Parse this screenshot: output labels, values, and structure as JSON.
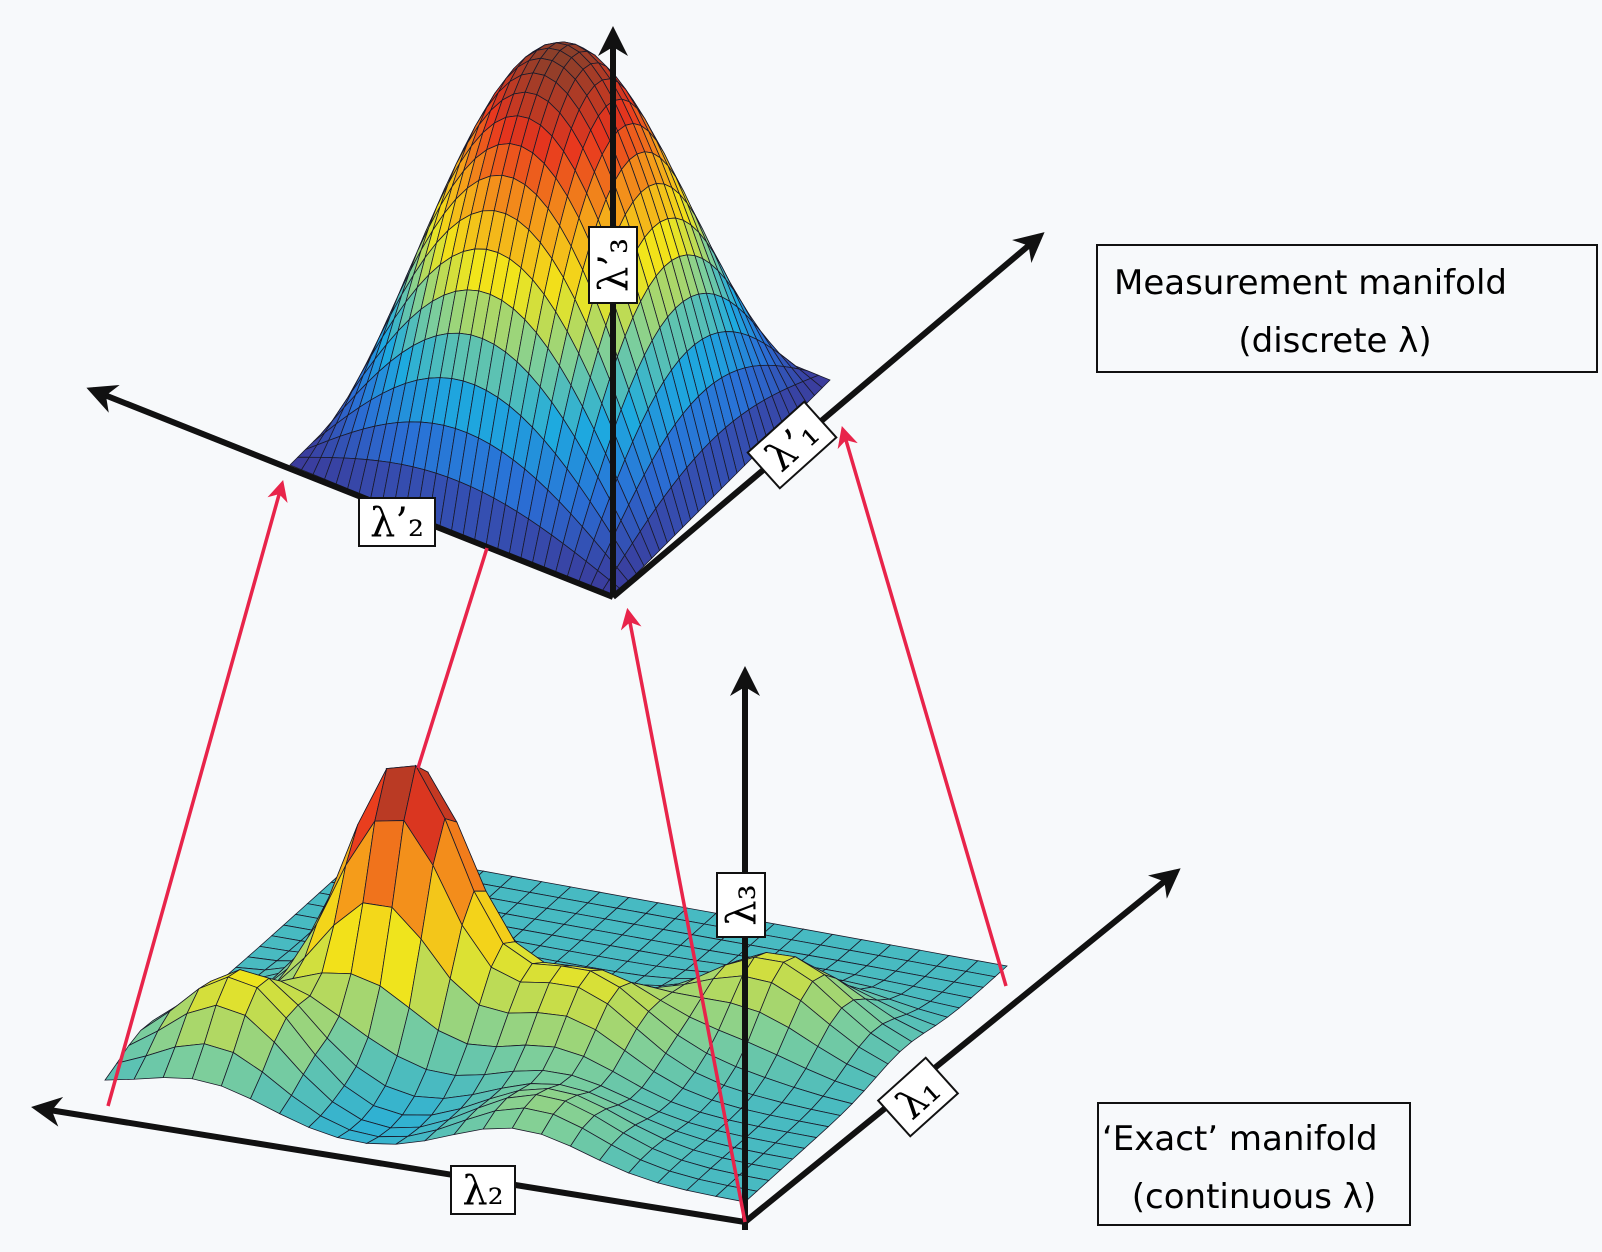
{
  "measurement_manifold": {
    "title": "Measurement manifold",
    "subtitle": "(discrete λ)",
    "axes": [
      "λ’₁",
      "λ’₂",
      "λ’₃"
    ]
  },
  "exact_manifold": {
    "title": "‘Exact’ manifold",
    "subtitle": "(continuous λ)",
    "axes": [
      "λ₁",
      "λ₂",
      "λ₃"
    ]
  }
}
